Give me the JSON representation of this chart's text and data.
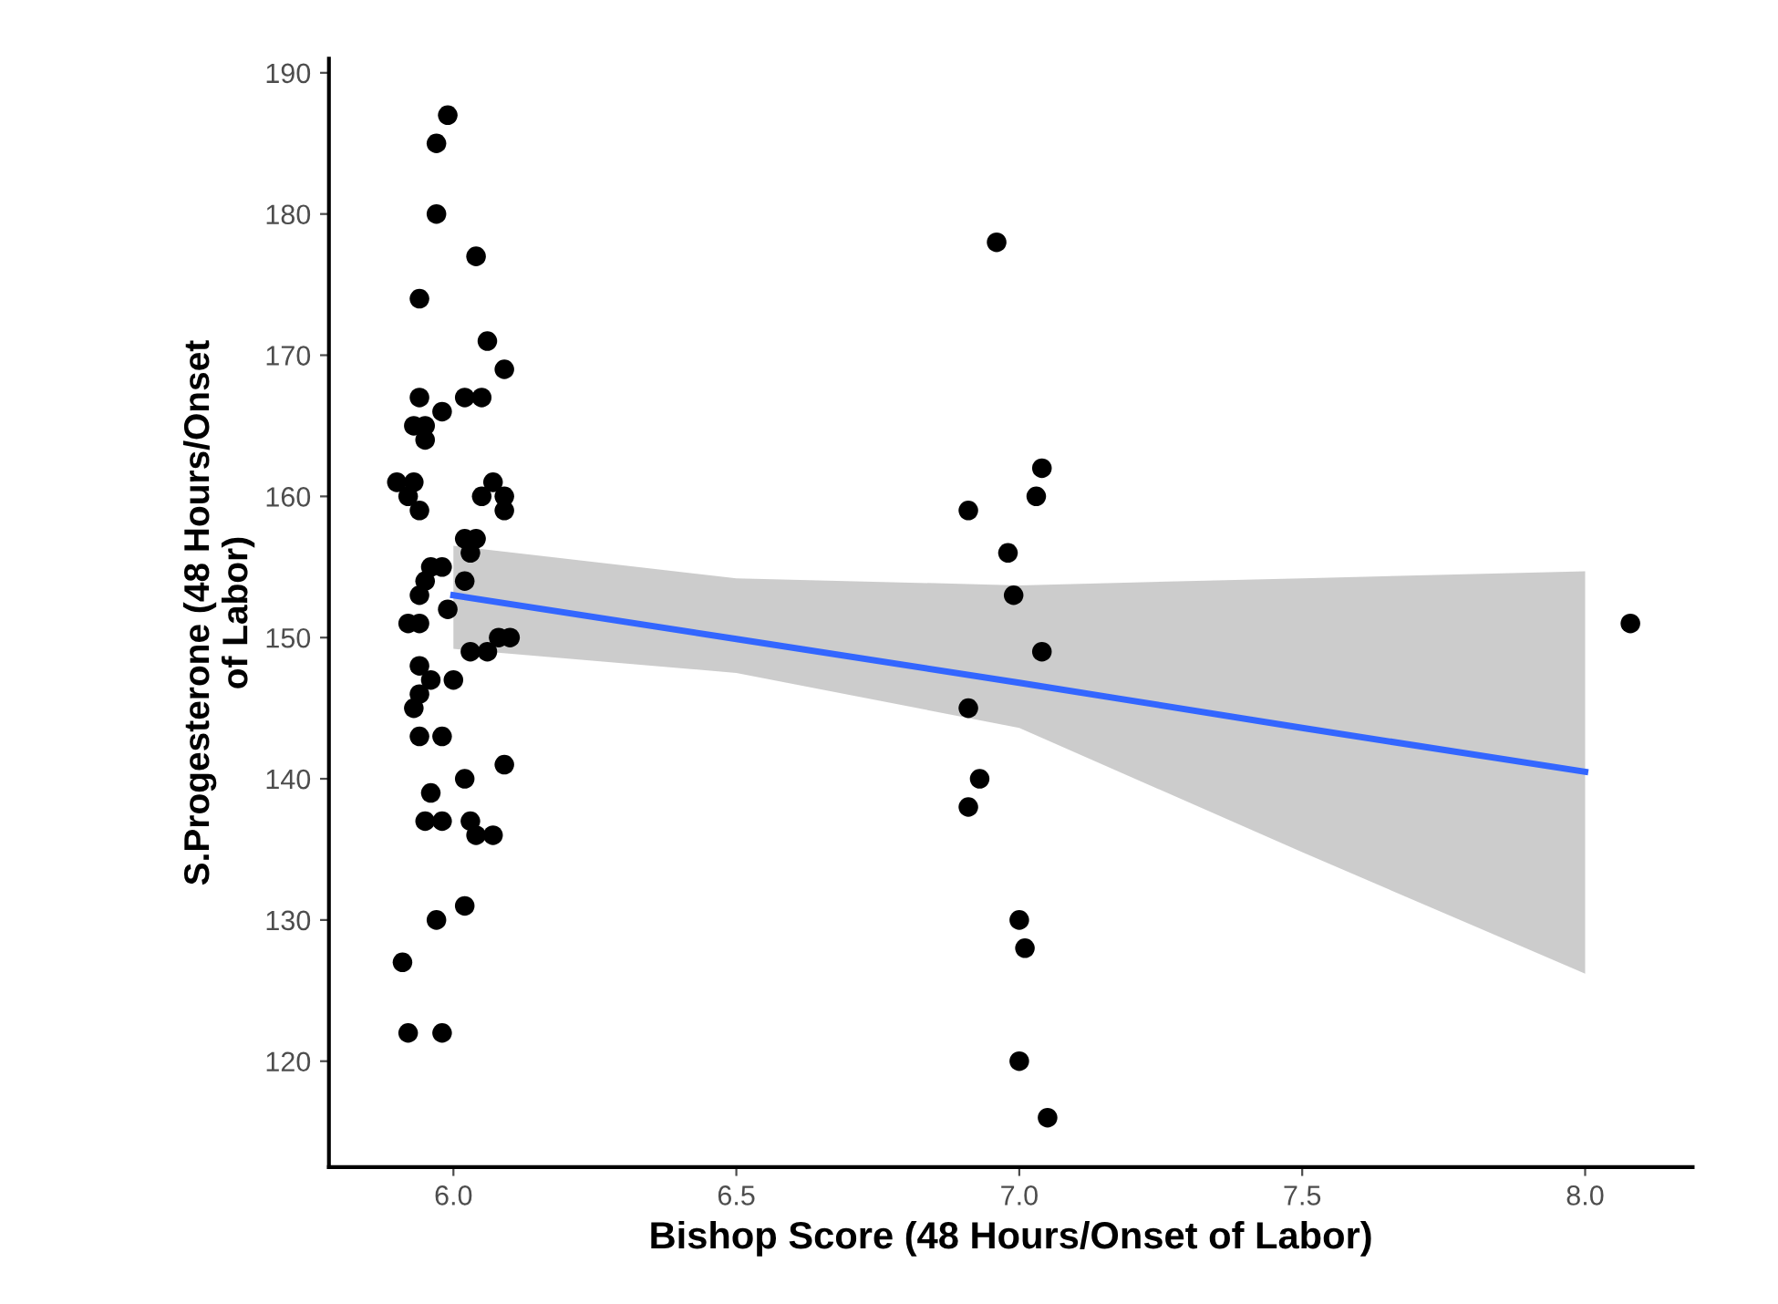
{
  "chart_data": {
    "type": "scatter",
    "xlabel": "Bishop Score (48 Hours/Onset of Labor)",
    "ylabel": "S.Progesterone (48 Hours/Onset\nof Labor)",
    "xlim": [
      5.78,
      8.19
    ],
    "ylim": [
      112.5,
      191
    ],
    "xticks": [
      {
        "value": 6,
        "label": "6.0"
      },
      {
        "value": 6.5,
        "label": "6.5"
      },
      {
        "value": 7,
        "label": "7.0"
      },
      {
        "value": 7.5,
        "label": "7.5"
      },
      {
        "value": 8,
        "label": "8.0"
      }
    ],
    "yticks": [
      120,
      130,
      140,
      150,
      160,
      170,
      180,
      190
    ],
    "grid": false,
    "legend": false,
    "series": [
      {
        "marker": "circle",
        "color": "#000000",
        "x": [
          5.99,
          5.97,
          5.97,
          6.04,
          5.94,
          6.06,
          6.09,
          5.94,
          6.02,
          6.05,
          5.98,
          5.93,
          5.95,
          5.95,
          5.9,
          5.93,
          6.07,
          6.05,
          6.09,
          5.92,
          5.94,
          6.09,
          5.98,
          5.96,
          5.95,
          5.94,
          6.02,
          6.03,
          6.02,
          6.04,
          5.99,
          5.92,
          5.94,
          6.03,
          6.06,
          6.08,
          6.1,
          5.94,
          5.96,
          6.0,
          5.94,
          5.93,
          5.94,
          5.98,
          6.09,
          6.02,
          5.96,
          5.95,
          5.98,
          6.03,
          6.04,
          6.07,
          5.97,
          6.02,
          5.91,
          5.92,
          5.98,
          6.96,
          7.04,
          7.03,
          6.91,
          6.98,
          6.99,
          7.04,
          6.91,
          6.93,
          6.91,
          7.0,
          7.01,
          7.0,
          7.05,
          8.08
        ],
        "values": [
          187,
          185,
          180,
          177,
          174,
          171,
          169,
          167,
          167,
          167,
          166,
          165,
          165,
          164,
          161,
          161,
          161,
          160,
          160,
          160,
          159,
          159,
          155,
          155,
          154,
          153,
          157,
          156,
          154,
          157,
          152,
          151,
          151,
          149,
          149,
          150,
          150,
          148,
          147,
          147,
          146,
          145,
          143,
          143,
          141,
          140,
          139,
          137,
          137,
          137,
          136,
          136,
          130,
          131,
          127,
          122,
          122,
          178,
          162,
          160,
          159,
          156,
          153,
          149,
          145,
          140,
          138,
          130,
          128,
          120,
          116,
          151
        ]
      },
      {
        "type": "line",
        "color": "#3366ff",
        "x": [
          6,
          6.5,
          7,
          7.5,
          8
        ],
        "values": [
          153.0,
          149.9,
          146.8,
          143.6,
          140.5
        ],
        "lower": [
          149.2,
          147.5,
          143.6,
          134.8,
          126.2
        ],
        "upper": [
          156.5,
          154.2,
          153.7,
          154.2,
          154.7
        ]
      }
    ]
  }
}
